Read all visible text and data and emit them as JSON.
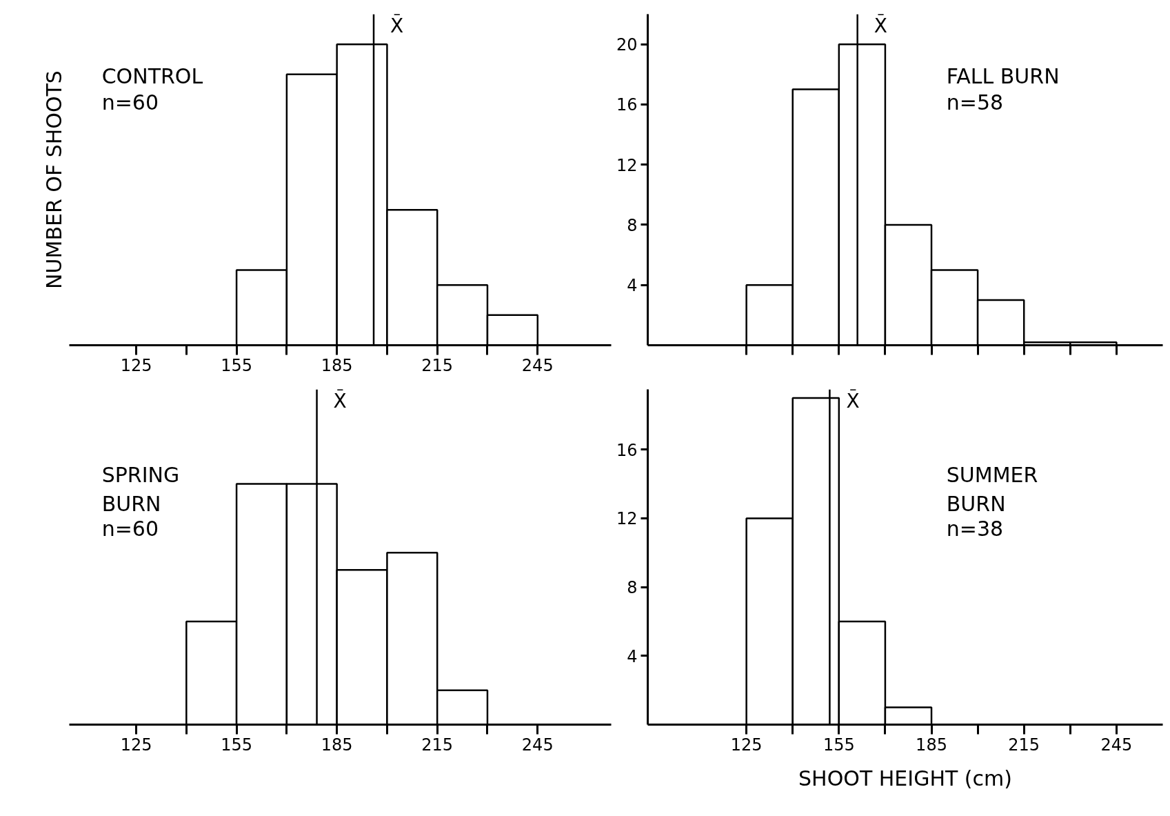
{
  "chart_data": [
    {
      "type": "histogram",
      "title": "CONTROL",
      "subtitle": "n=60",
      "ylabel": "NUMBER OF SHOOTS",
      "bins": [
        155,
        170,
        185,
        200,
        215,
        230,
        245
      ],
      "values": [
        5,
        18,
        20,
        9,
        4,
        2
      ],
      "xlim": [
        105,
        267
      ],
      "ylim": [
        0,
        22
      ],
      "xticks": [
        125,
        {
          "value": 140,
          "label": null
        },
        155,
        {
          "value": 170,
          "label": null
        },
        185,
        {
          "value": 200,
          "label": null
        },
        215,
        {
          "value": 230,
          "label": null
        },
        245
      ],
      "tick_labels": "x",
      "grid": false,
      "ref_lines": [
        {
          "axis": "x",
          "value": 196,
          "label": "X̄"
        }
      ]
    },
    {
      "type": "histogram",
      "title": "FALL BURN",
      "subtitle": "n=58",
      "bins": [
        125,
        140,
        155,
        170,
        185,
        200,
        215,
        230,
        245
      ],
      "values": [
        4,
        17,
        20,
        8,
        5,
        3,
        0.2,
        0.2
      ],
      "xlim": [
        93,
        260
      ],
      "ylim": [
        0,
        22
      ],
      "xticks": [
        125,
        {
          "value": 140,
          "label": null
        },
        155,
        {
          "value": 170,
          "label": null
        },
        185,
        {
          "value": 200,
          "label": null
        },
        215,
        {
          "value": 230,
          "label": null
        },
        245
      ],
      "yticks": [
        4,
        8,
        12,
        16,
        20
      ],
      "tick_labels": "y",
      "grid": false,
      "ref_lines": [
        {
          "axis": "x",
          "value": 161,
          "label": "X̄"
        }
      ]
    },
    {
      "type": "histogram",
      "title": "SPRING\nBURN",
      "subtitle": "n=60",
      "bins": [
        140,
        155,
        170,
        185,
        200,
        215,
        230
      ],
      "values": [
        6,
        14,
        14,
        9,
        10,
        2
      ],
      "xlim": [
        105,
        267
      ],
      "ylim": [
        0,
        19.5
      ],
      "xticks": [
        125,
        {
          "value": 140,
          "label": null
        },
        155,
        {
          "value": 170,
          "label": null
        },
        185,
        {
          "value": 200,
          "label": null
        },
        215,
        {
          "value": 230,
          "label": null
        },
        245
      ],
      "tick_labels": "x",
      "grid": false,
      "ref_lines": [
        {
          "axis": "x",
          "value": 179,
          "label": "X̄"
        }
      ]
    },
    {
      "type": "histogram",
      "title": "SUMMER\nBURN",
      "subtitle": "n=38",
      "xlabel": "SHOOT HEIGHT (cm)",
      "bins": [
        125,
        140,
        155,
        170,
        185
      ],
      "values": [
        12,
        19,
        6,
        1
      ],
      "xlim": [
        93,
        260
      ],
      "ylim": [
        0,
        19.5
      ],
      "xticks": [
        125,
        {
          "value": 140,
          "label": null
        },
        155,
        {
          "value": 170,
          "label": null
        },
        185,
        {
          "value": 200,
          "label": null
        },
        215,
        {
          "value": 230,
          "label": null
        },
        245
      ],
      "yticks": [
        4,
        8,
        12,
        16
      ],
      "grid": false,
      "ref_lines": [
        {
          "axis": "x",
          "value": 152,
          "label": "X̄"
        }
      ]
    }
  ]
}
